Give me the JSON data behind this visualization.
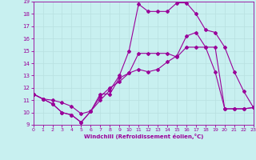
{
  "xlabel": "Windchill (Refroidissement éolien,°C)",
  "background_color": "#c8f0f0",
  "line_color": "#990099",
  "grid_color": "#b8e0e0",
  "xmin": 0,
  "xmax": 23,
  "ymin": 9,
  "ymax": 19,
  "line1_x": [
    0,
    1,
    2,
    3,
    4,
    5,
    6,
    7,
    8,
    9,
    10,
    11,
    12,
    13,
    14,
    15,
    16,
    17,
    18,
    19,
    20,
    21,
    22,
    23
  ],
  "line1_y": [
    11.5,
    11.1,
    10.7,
    10.0,
    9.8,
    9.2,
    10.1,
    11.5,
    11.5,
    12.8,
    13.2,
    13.5,
    13.3,
    13.5,
    14.1,
    14.6,
    16.2,
    16.5,
    15.3,
    13.3,
    10.3,
    10.3,
    10.3,
    10.4
  ],
  "line2_x": [
    0,
    1,
    2,
    3,
    4,
    5,
    6,
    7,
    8,
    9,
    10,
    11,
    12,
    13,
    14,
    15,
    16,
    17,
    18,
    19,
    20,
    21,
    22,
    23
  ],
  "line2_y": [
    11.5,
    11.1,
    11.0,
    10.8,
    10.5,
    9.9,
    10.1,
    11.3,
    12.0,
    12.5,
    13.2,
    14.8,
    14.8,
    14.8,
    14.8,
    14.5,
    15.3,
    15.3,
    15.3,
    15.3,
    10.3,
    10.3,
    10.3,
    10.4
  ],
  "line3_x": [
    0,
    1,
    2,
    3,
    4,
    5,
    6,
    7,
    8,
    9,
    10,
    11,
    12,
    13,
    14,
    15,
    16,
    17,
    18,
    19,
    20,
    21,
    22,
    23
  ],
  "line3_y": [
    11.5,
    11.1,
    10.7,
    10.0,
    9.8,
    9.2,
    10.1,
    11.0,
    11.8,
    13.0,
    15.0,
    18.8,
    18.2,
    18.2,
    18.2,
    18.9,
    18.9,
    18.0,
    16.7,
    16.5,
    15.3,
    13.3,
    11.7,
    10.4
  ]
}
